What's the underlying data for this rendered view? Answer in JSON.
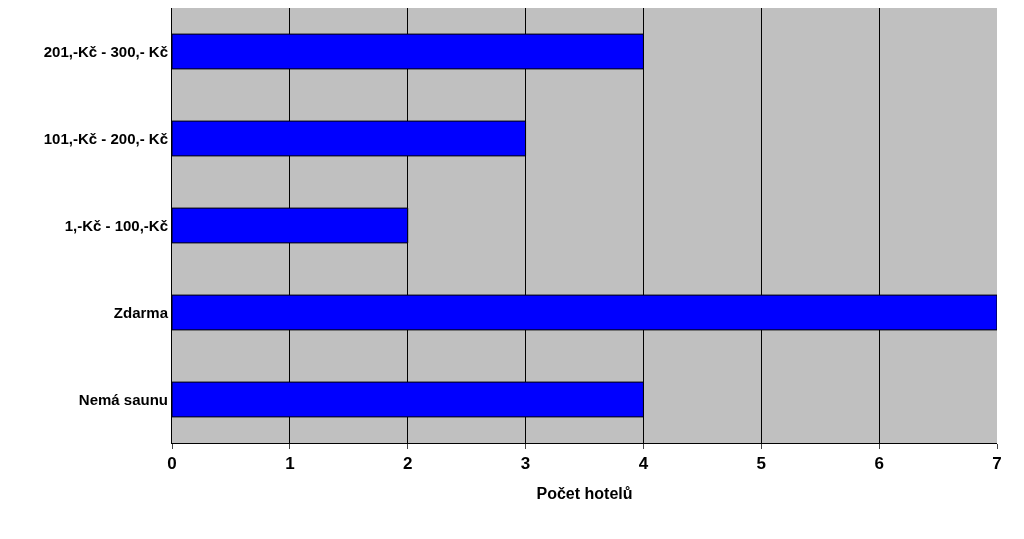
{
  "chart_data": {
    "type": "bar",
    "orientation": "horizontal",
    "xlabel": "Počet hotelů",
    "categories": [
      "201,-Kč - 300,- Kč",
      "101,-Kč - 200,- Kč",
      "1,-Kč - 100,-Kč",
      "Zdarma",
      "Nemá saunu"
    ],
    "values": [
      4,
      3,
      2,
      7,
      4
    ],
    "color": "#0000ff",
    "xlim": [
      0,
      7
    ],
    "xticks": [
      0,
      1,
      2,
      3,
      4,
      5,
      6,
      7
    ],
    "grid": "x"
  }
}
